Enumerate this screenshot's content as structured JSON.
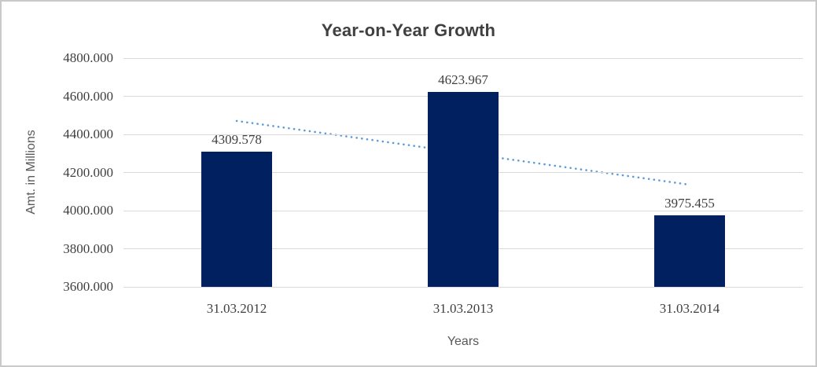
{
  "window": {
    "background": "#ffffff",
    "border_color": "#c9c9c9"
  },
  "chart_data": {
    "type": "bar",
    "title": "Year-on-Year Growth",
    "xlabel": "Years",
    "ylabel": "Amt. in Millions",
    "categories": [
      "31.03.2012",
      "31.03.2013",
      "31.03.2014"
    ],
    "values": [
      4309.578,
      4623.967,
      3975.455
    ],
    "data_labels": [
      "4309.578",
      "4623.967",
      "3975.455"
    ],
    "ylim": [
      3600,
      4800
    ],
    "ytick_step": 200,
    "ytick_labels": [
      "3600.000",
      "3800.000",
      "4000.000",
      "4200.000",
      "4400.000",
      "4600.000",
      "4800.000"
    ],
    "grid": true,
    "legend": "none",
    "bar_color": "#002060",
    "label_color": "#3f3f3f",
    "axis_title_color": "#595959",
    "title_color": "#404040",
    "gridline_color": "#d9d9d9",
    "trendline": {
      "style": "dotted",
      "color": "#5b9bd5",
      "start_value": 4470.6,
      "end_value": 4135.9
    }
  }
}
